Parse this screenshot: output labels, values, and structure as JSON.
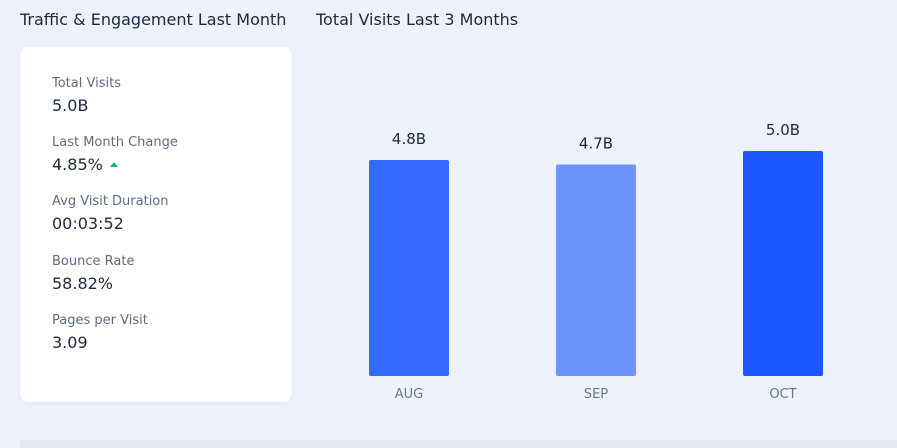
{
  "left_panel": {
    "title": "Traffic & Engagement Last Month",
    "metrics": [
      {
        "label": "Total Visits",
        "value": "5.0B"
      },
      {
        "label": "Last Month Change",
        "value": "4.85%",
        "trend": "up",
        "trend_color": "#1fb58a"
      },
      {
        "label": "Avg Visit Duration",
        "value": "00:03:52"
      },
      {
        "label": "Bounce Rate",
        "value": "58.82%"
      },
      {
        "label": "Pages per Visit",
        "value": "3.09"
      }
    ]
  },
  "chart_panel": {
    "title": "Total Visits Last 3 Months"
  },
  "chart_data": {
    "type": "bar",
    "title": "Total Visits Last 3 Months",
    "categories": [
      "AUG",
      "SEP",
      "OCT"
    ],
    "values": [
      4.8,
      4.7,
      5.0
    ],
    "data_labels": [
      "4.8B",
      "4.7B",
      "5.0B"
    ],
    "unit": "B",
    "colors": [
      "#3369ff",
      "#6d95fc",
      "#1b57ff"
    ],
    "ylim": [
      0,
      5.0
    ],
    "grid": false,
    "legend": "none"
  }
}
